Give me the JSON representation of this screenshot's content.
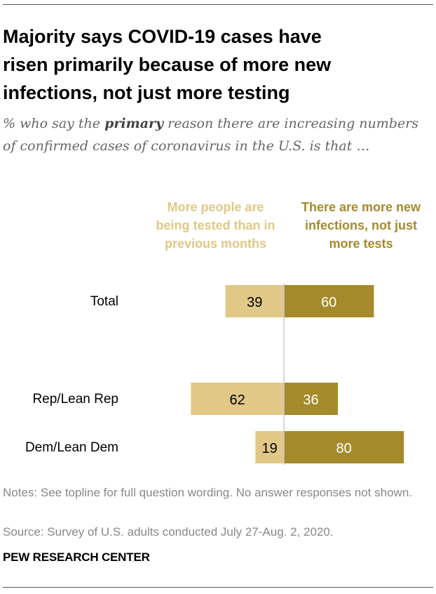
{
  "header": {
    "title_line1": "Majority says COVID-19 cases have",
    "title_line2": "risen primarily because of more new",
    "title_line3": "infections, not just more testing"
  },
  "subtitle": {
    "prefix": "% who say the ",
    "emphasis": "primary",
    "suffix": " reason there are increasing numbers of confirmed cases of coronavirus in the U.S. is that …"
  },
  "legend": {
    "series_a": "More people are being tested than in previous months",
    "series_b": "There are more new infections, not just more tests"
  },
  "chart_data": {
    "type": "bar",
    "orientation": "horizontal-diverging",
    "categories": [
      "Total",
      "Rep/Lean Rep",
      "Dem/Lean Dem"
    ],
    "series": [
      {
        "name": "More people are being tested than in previous months",
        "values": [
          39,
          62,
          19
        ],
        "color": "#e1c887"
      },
      {
        "name": "There are more new infections, not just more tests",
        "values": [
          60,
          36,
          80
        ],
        "color": "#a48a2b"
      }
    ],
    "title": "Majority says COVID-19 cases have risen primarily because of more new infections, not just more testing",
    "xlabel": "",
    "ylabel": "",
    "grid": false,
    "legend_position": "top"
  },
  "notes": "Notes: See topline for full question wording. No answer responses not shown.",
  "source": "Source: Survey of U.S. adults conducted July 27-Aug. 2, 2020.",
  "footer": "PEW RESEARCH CENTER"
}
